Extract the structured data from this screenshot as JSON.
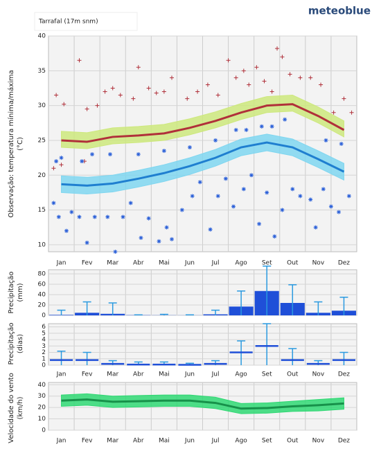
{
  "header": {
    "brand": "meteoblue",
    "location": "Tarrafal (17m snm)"
  },
  "chart_data": [
    {
      "type": "line",
      "ylabel": [
        "Observação: temperatura mínima/máxima",
        "(°C)"
      ],
      "categories": [
        "Jan",
        "Fev",
        "Mar",
        "Abr",
        "Mai",
        "Jun",
        "Jul",
        "Ago",
        "Set",
        "Out",
        "Nov",
        "Dez"
      ],
      "ylim": [
        9,
        40
      ],
      "yticks": [
        10,
        15,
        20,
        25,
        30,
        35,
        40
      ],
      "xlim": [
        0,
        12
      ],
      "grid": true,
      "series": [
        {
          "color": "#b0303a",
          "band_color": "#cde87c",
          "values": [
            25,
            24.8,
            25.5,
            25.7,
            26,
            26.8,
            27.8,
            29,
            30,
            30.2,
            28.5,
            26.5
          ],
          "lower": [
            24,
            23.8,
            24.5,
            24.7,
            25,
            25.8,
            26.8,
            28,
            29,
            29.2,
            27.5,
            25.5
          ],
          "upper": [
            26.3,
            26.1,
            26.8,
            27,
            27.3,
            28.1,
            29.1,
            30.3,
            31.3,
            31.5,
            29.8,
            27.8
          ]
        },
        {
          "color": "#1f7fd0",
          "band_color": "#7fd6f0",
          "values": [
            18.7,
            18.5,
            18.8,
            19.5,
            20.3,
            21.3,
            22.5,
            24,
            24.7,
            24,
            22.3,
            20.5
          ],
          "lower": [
            17.5,
            17.3,
            17.6,
            18.3,
            19.1,
            20.1,
            21.3,
            22.8,
            23.5,
            22.8,
            21.1,
            19.3
          ],
          "upper": [
            19.9,
            19.7,
            20,
            20.7,
            21.5,
            22.5,
            23.7,
            25.2,
            25.9,
            25.2,
            23.5,
            21.7
          ]
        }
      ],
      "observations": [
        {
          "color": "#b0303a",
          "marker": "+",
          "x": [
            0.2,
            0.3,
            0.5,
            0.6,
            1.2,
            1.4,
            1.5,
            1.9,
            2.2,
            2.5,
            2.8,
            3.3,
            3.5,
            3.9,
            4.2,
            4.5,
            4.8,
            5.4,
            5.8,
            6.2,
            6.6,
            7.0,
            7.3,
            7.6,
            7.8,
            8.1,
            8.4,
            8.7,
            8.9,
            9.1,
            9.4,
            9.8,
            10.2,
            10.6,
            11.1,
            11.5,
            11.8
          ],
          "y": [
            21,
            31.5,
            21.5,
            30.2,
            36.5,
            22,
            29.5,
            30,
            32,
            32.5,
            31.5,
            31,
            35.5,
            32.5,
            31.8,
            32,
            34,
            31,
            32,
            33,
            31.5,
            36.5,
            34,
            35,
            33,
            35.5,
            33.5,
            32,
            38.2,
            37,
            34.5,
            34,
            34,
            33,
            29,
            31,
            29
          ]
        },
        {
          "color": "#2a5fd8",
          "marker": "*",
          "x": [
            0.2,
            0.3,
            0.4,
            0.5,
            0.7,
            0.9,
            1.2,
            1.3,
            1.5,
            1.7,
            1.8,
            2.3,
            2.4,
            2.6,
            2.9,
            3.2,
            3.5,
            3.6,
            3.9,
            4.3,
            4.5,
            4.6,
            4.8,
            5.2,
            5.5,
            5.6,
            5.9,
            6.3,
            6.5,
            6.6,
            6.9,
            7.2,
            7.3,
            7.6,
            7.7,
            7.9,
            8.2,
            8.3,
            8.5,
            8.7,
            8.8,
            9.1,
            9.2,
            9.5,
            9.8,
            10.2,
            10.4,
            10.7,
            10.8,
            11.0,
            11.3,
            11.4,
            11.7
          ],
          "y": [
            16,
            22,
            14,
            22.5,
            12,
            14.7,
            14,
            22,
            10.3,
            23,
            14,
            14,
            23,
            9,
            14,
            16,
            23,
            11,
            13.8,
            10.5,
            23.5,
            12.5,
            10.8,
            15,
            24,
            17,
            19,
            12.2,
            25,
            17,
            19.5,
            15.5,
            26.5,
            18,
            26.5,
            20,
            13,
            27,
            17.5,
            27,
            11.2,
            15,
            28,
            18,
            17,
            16.5,
            12.5,
            18,
            25,
            15.5,
            14.7,
            24.5,
            17
          ]
        }
      ]
    },
    {
      "type": "bar",
      "ylabel": [
        "Precipitação",
        "(mm)"
      ],
      "categories": [
        "Jan",
        "Fev",
        "Mar",
        "Abr",
        "Mai",
        "Jun",
        "Jul",
        "Ago",
        "Set",
        "Out",
        "Nov",
        "Dez"
      ],
      "ylim": [
        0,
        88
      ],
      "yticks": [
        0,
        20,
        40,
        60,
        80
      ],
      "grid": true,
      "color": "#1f4fd8",
      "whisker_color": "#2a9ae0",
      "values": [
        1,
        5,
        3,
        0.5,
        0.3,
        0.2,
        2,
        17,
        47,
        24,
        5,
        9
      ],
      "upper": [
        10,
        26,
        24,
        1,
        2,
        1,
        10,
        47,
        95,
        59,
        26,
        35
      ]
    },
    {
      "type": "errorbar",
      "ylabel": [
        "Precipitação",
        "(dias)"
      ],
      "categories": [
        "Jan",
        "Fev",
        "Mar",
        "Abr",
        "Mai",
        "Jun",
        "Jul",
        "Ago",
        "Set",
        "Out",
        "Nov",
        "Dez"
      ],
      "ylim": [
        0,
        6.5
      ],
      "yticks": [
        0,
        1,
        2,
        3,
        4,
        5,
        6
      ],
      "grid": true,
      "color": "#1f4fd8",
      "whisker_color": "#2a9ae0",
      "values": [
        0.8,
        0.8,
        0.2,
        0.1,
        0.1,
        0.05,
        0.2,
        2,
        3,
        0.8,
        0.2,
        0.8
      ],
      "upper": [
        2.2,
        2,
        0.7,
        0.5,
        0.5,
        0.3,
        0.7,
        3.8,
        6.5,
        2.6,
        0.7,
        2
      ]
    },
    {
      "type": "line",
      "ylabel": [
        "Velocidade do vento",
        "(km/h)"
      ],
      "categories": [
        "Jan",
        "Fev",
        "Mar",
        "Abr",
        "Mai",
        "Jun",
        "Jul",
        "Ago",
        "Set",
        "Out",
        "Nov",
        "Dez"
      ],
      "ylim": [
        0,
        42
      ],
      "yticks": [
        0,
        10,
        20,
        30,
        40
      ],
      "grid": true,
      "series": [
        {
          "color": "#17914a",
          "band_color": "#2fd873",
          "values": [
            26,
            27,
            25,
            25.5,
            26,
            26,
            24,
            19,
            19.5,
            21,
            22,
            23.5
          ],
          "lower": [
            21,
            22,
            20,
            20.5,
            21,
            21,
            19,
            14.5,
            15,
            16.5,
            17,
            18.5
          ],
          "upper": [
            31,
            32,
            30,
            30.5,
            31,
            31,
            29,
            23.5,
            24,
            25.5,
            27,
            28.5
          ]
        }
      ]
    }
  ]
}
